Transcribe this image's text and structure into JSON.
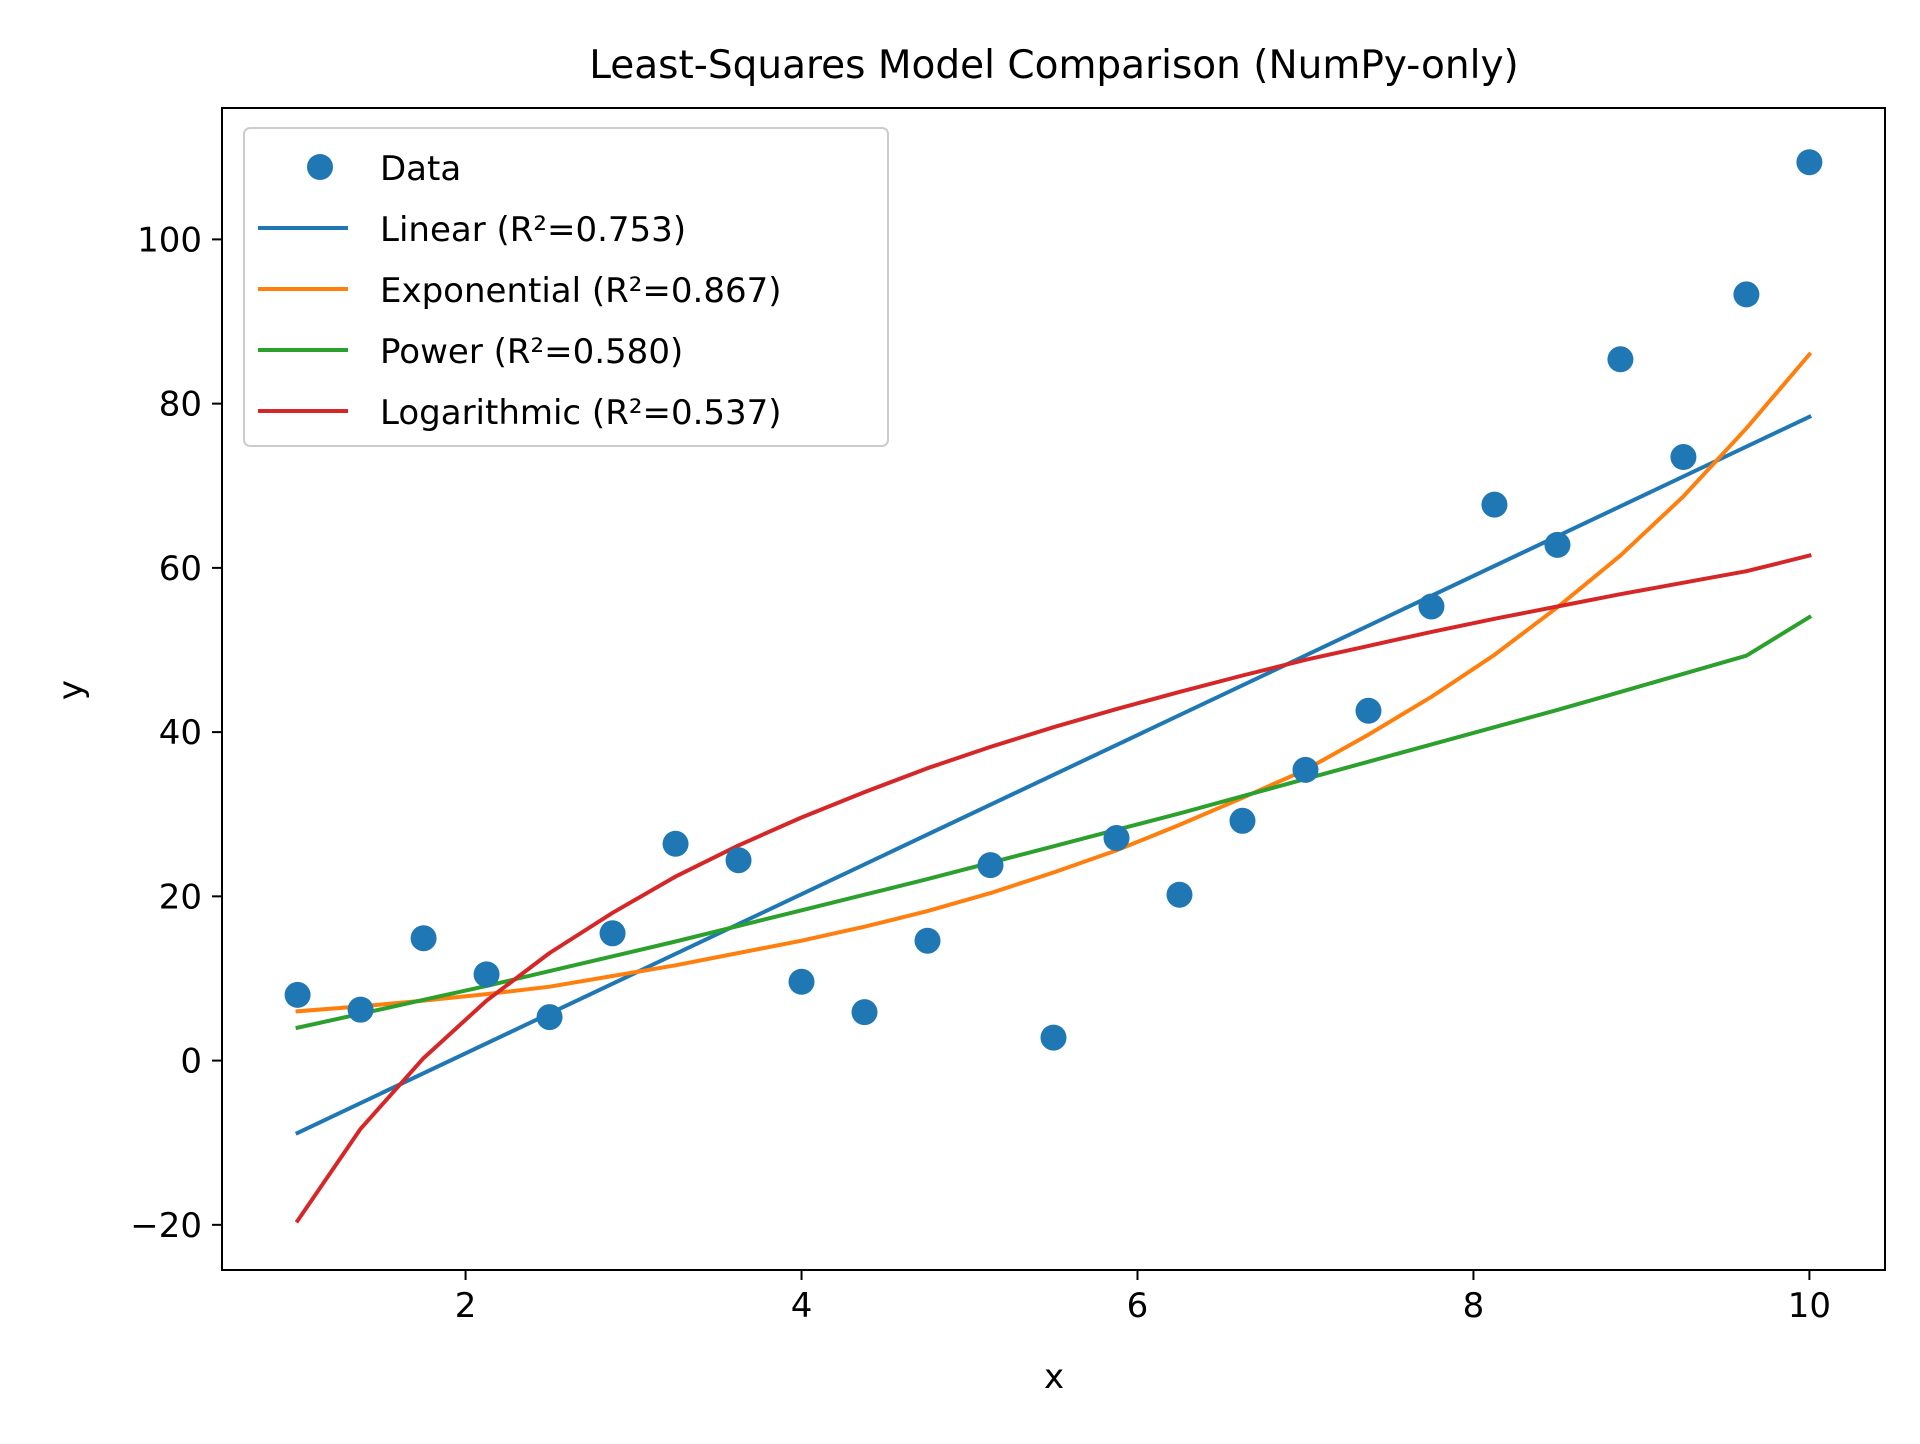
{
  "colors": {
    "data": "#1f77b4",
    "linear": "#1f77b4",
    "exponential": "#ff7f0e",
    "power": "#2ca02c",
    "logarithmic": "#d62728",
    "axes": "#000000",
    "legend_border": "#cccccc"
  },
  "chart_data": {
    "type": "scatter",
    "title": "Least-Squares Model Comparison (NumPy-only)",
    "xlabel": "x",
    "ylabel": "y",
    "xlim": [
      0.55,
      10.45
    ],
    "ylim": [
      -25.5,
      116.0
    ],
    "xticks": [
      2,
      4,
      6,
      8,
      10
    ],
    "xtick_labels": [
      "2",
      "4",
      "6",
      "8",
      "10"
    ],
    "yticks": [
      -20,
      0,
      20,
      40,
      60,
      80,
      100
    ],
    "ytick_labels": [
      "−20",
      "0",
      "20",
      "40",
      "60",
      "80",
      "100"
    ],
    "grid": false,
    "legend_position": "upper-left",
    "points": {
      "name": "Data",
      "x": [
        1.0,
        1.375,
        1.75,
        2.125,
        2.5,
        2.875,
        3.25,
        3.625,
        4.0,
        4.375,
        4.75,
        5.125,
        5.5,
        5.875,
        6.25,
        6.625,
        7.0,
        7.375,
        7.75,
        8.125,
        8.5,
        8.875,
        9.25,
        9.625,
        10.0
      ],
      "y": [
        8.0,
        6.2,
        14.9,
        10.5,
        5.3,
        15.5,
        26.4,
        24.4,
        9.6,
        5.9,
        14.6,
        23.8,
        2.8,
        27.1,
        20.2,
        29.2,
        35.4,
        42.6,
        55.3,
        67.7,
        62.8,
        85.4,
        73.5,
        93.3,
        109.4
      ]
    },
    "series": [
      {
        "name": "Linear (R²=0.753)",
        "x": [
          1.0,
          10.0
        ],
        "y": [
          -8.8,
          78.4
        ]
      },
      {
        "name": "Exponential (R²=0.867)",
        "x": [
          1.0,
          1.375,
          1.75,
          2.125,
          2.5,
          2.875,
          3.25,
          3.625,
          4.0,
          4.375,
          4.75,
          5.125,
          5.5,
          5.875,
          6.25,
          6.625,
          7.0,
          7.375,
          7.75,
          8.125,
          8.5,
          8.875,
          9.25,
          9.625,
          10.0
        ],
        "y": [
          6.0,
          6.6,
          7.3,
          8.1,
          9.0,
          10.3,
          11.6,
          13.1,
          14.6,
          16.3,
          18.2,
          20.4,
          22.9,
          25.6,
          28.7,
          32.0,
          35.4,
          39.7,
          44.3,
          49.4,
          55.2,
          61.5,
          68.7,
          77.0,
          86.0
        ]
      },
      {
        "name": "Power (R²=0.580)",
        "x": [
          1.0,
          1.375,
          1.75,
          2.125,
          2.5,
          2.875,
          3.25,
          3.625,
          4.0,
          4.375,
          4.75,
          5.125,
          5.5,
          5.875,
          6.25,
          6.625,
          7.0,
          7.375,
          7.75,
          8.125,
          8.5,
          8.875,
          9.25,
          9.625,
          10.0
        ],
        "y": [
          4.0,
          5.7,
          7.4,
          9.1,
          10.9,
          12.7,
          14.5,
          16.4,
          18.3,
          20.2,
          22.1,
          24.1,
          26.1,
          28.1,
          30.1,
          32.2,
          34.3,
          36.4,
          38.5,
          40.6,
          42.7,
          44.9,
          47.1,
          49.3,
          54.0
        ]
      },
      {
        "name": "Logarithmic (R²=0.537)",
        "x": [
          1.0,
          1.375,
          1.75,
          2.125,
          2.5,
          2.875,
          3.25,
          3.625,
          4.0,
          4.375,
          4.75,
          5.125,
          5.5,
          5.875,
          6.25,
          6.625,
          7.0,
          7.375,
          7.75,
          8.125,
          8.5,
          8.875,
          9.25,
          9.625,
          10.0
        ],
        "y": [
          -19.5,
          -8.3,
          0.3,
          7.3,
          13.1,
          18.0,
          22.4,
          26.2,
          29.6,
          32.7,
          35.6,
          38.2,
          40.6,
          42.8,
          44.9,
          46.9,
          48.8,
          50.5,
          52.2,
          53.8,
          55.3,
          56.8,
          58.2,
          59.6,
          61.5
        ]
      }
    ]
  }
}
